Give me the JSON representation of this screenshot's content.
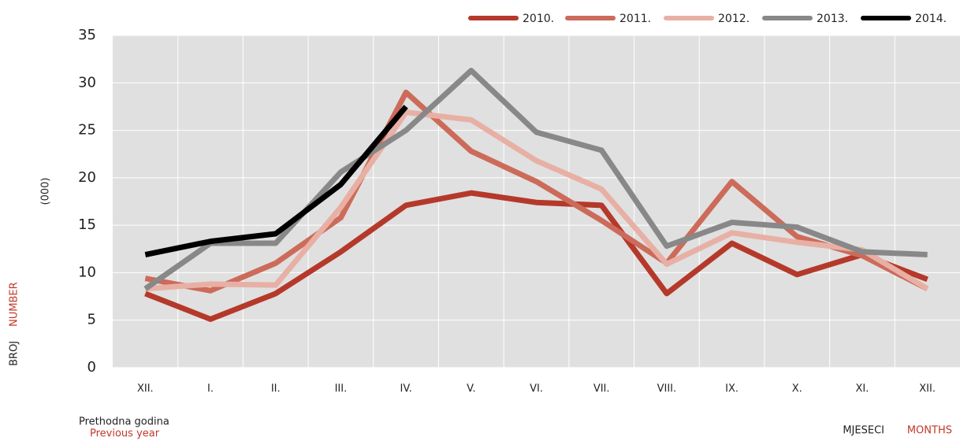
{
  "chart_data": {
    "type": "line",
    "categories": [
      "XII.",
      "I.",
      "II.",
      "III.",
      "IV.",
      "V.",
      "VI.",
      "VII.",
      "VIII.",
      "IX.",
      "X.",
      "XI.",
      "XII."
    ],
    "series": [
      {
        "name": "2010.",
        "color": "#b5392a",
        "values": [
          7.8,
          5.1,
          7.8,
          12.2,
          17.1,
          18.4,
          17.4,
          17.1,
          7.8,
          13.1,
          9.8,
          11.9,
          9.3
        ]
      },
      {
        "name": "2011.",
        "color": "#cc6b5a",
        "values": [
          9.4,
          8.1,
          11.0,
          15.8,
          29.0,
          22.8,
          19.6,
          15.5,
          11.0,
          19.6,
          13.8,
          11.8,
          8.3
        ]
      },
      {
        "name": "2012.",
        "color": "#e8b0a5",
        "values": [
          8.3,
          8.8,
          8.7,
          16.9,
          26.9,
          26.1,
          21.8,
          18.8,
          10.9,
          14.2,
          13.2,
          12.4,
          8.3
        ]
      },
      {
        "name": "2013.",
        "color": "#888888",
        "values": [
          8.3,
          13.1,
          13.1,
          20.6,
          25.0,
          31.3,
          24.8,
          22.9,
          12.8,
          15.3,
          14.8,
          12.2,
          11.9
        ]
      },
      {
        "name": "2014.",
        "color": "#000000",
        "values": [
          11.9,
          13.3,
          14.1,
          19.3,
          27.5,
          null,
          null,
          null,
          null,
          null,
          null,
          null,
          null
        ]
      }
    ],
    "ylim": [
      0,
      35
    ],
    "yticks": [
      0,
      5,
      10,
      15,
      20,
      25,
      30,
      35
    ],
    "grid": true,
    "legend": "top-right",
    "y_label": "BROJ",
    "y_label_en": "NUMBER",
    "y_unit": "(000)",
    "x_label": "MJESECI",
    "x_label_en": "MONTHS",
    "first_category_note": "Prethodna godina",
    "first_category_note_en": "Previous year"
  }
}
